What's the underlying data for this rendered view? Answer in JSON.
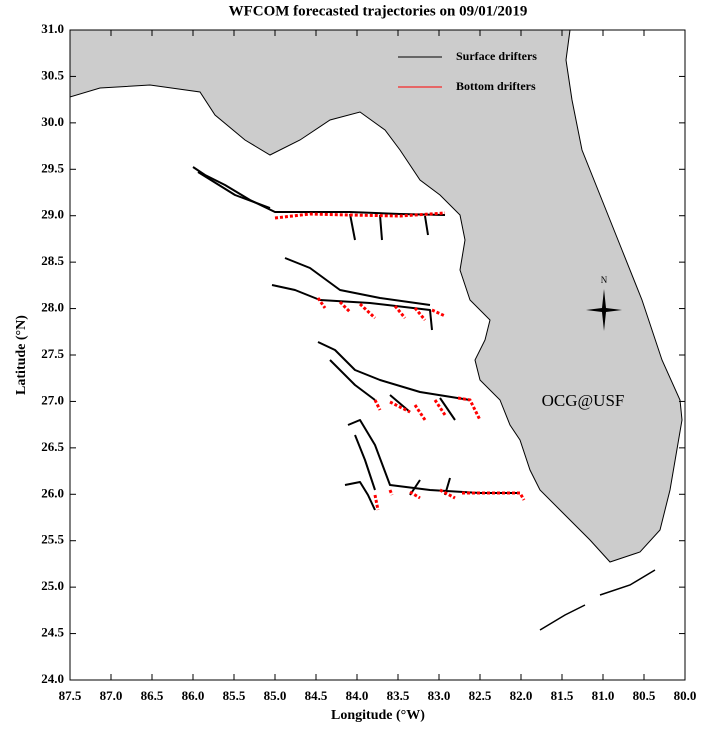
{
  "chart_data": {
    "type": "map",
    "title": "WFCOM forecasted trajectories on 09/01/2019",
    "x_label": "Longitude (°W)",
    "y_label": "Latitude (°N)",
    "xlim": [
      87.5,
      80.0
    ],
    "ylim": [
      24.0,
      31.0
    ],
    "xticks": [
      87.5,
      {
        "value": 87,
        "label": "87.0"
      },
      86.5,
      {
        "value": 86,
        "label": "86.0"
      },
      85.5,
      {
        "value": 85,
        "label": "85.0"
      },
      84.5,
      {
        "value": 84,
        "label": "84.0"
      },
      83.5,
      {
        "value": 83,
        "label": "83.0"
      },
      82.5,
      {
        "value": 82,
        "label": "82.0"
      },
      81.5,
      {
        "value": 81,
        "label": "81.0"
      },
      80.5,
      {
        "value": 80,
        "label": "80.0"
      }
    ],
    "yticks": [
      {
        "value": 24,
        "label": "24.0"
      },
      24.5,
      {
        "value": 25,
        "label": "25.0"
      },
      25.5,
      {
        "value": 26,
        "label": "26.0"
      },
      26.5,
      {
        "value": 27,
        "label": "27.0"
      },
      27.5,
      {
        "value": 28,
        "label": "28.0"
      },
      28.5,
      {
        "value": 29,
        "label": "29.0"
      },
      29.5,
      {
        "value": 30,
        "label": "30.0"
      },
      30.5,
      {
        "value": 31,
        "label": "31.0"
      }
    ],
    "legend": [
      {
        "name": "Surface drifters",
        "color": "#000000"
      },
      {
        "name": "Bottom drifters",
        "color": "#ff0000"
      }
    ],
    "annotations": [
      {
        "text": "OCG@USF",
        "color": "#ff0000"
      },
      {
        "text": "N"
      }
    ]
  }
}
